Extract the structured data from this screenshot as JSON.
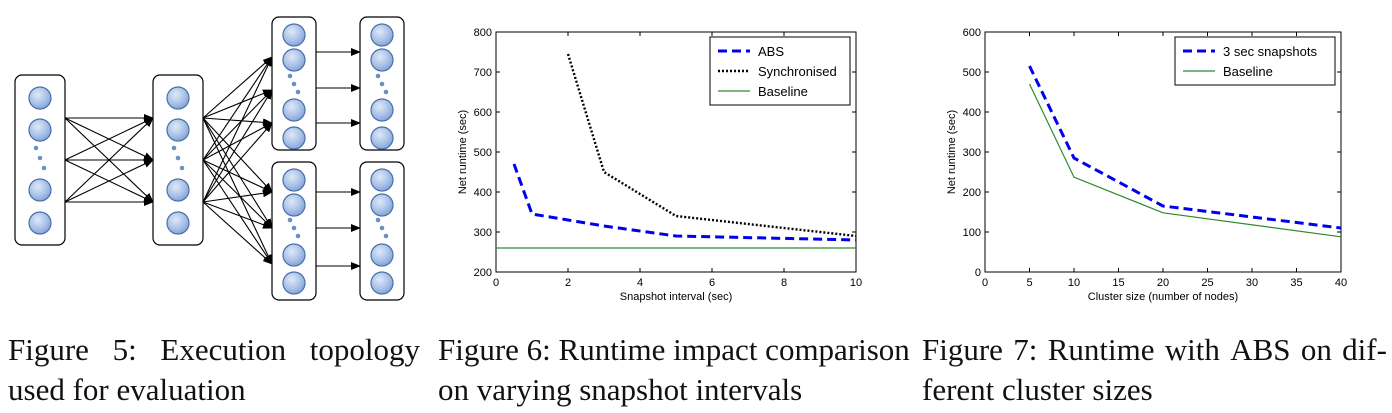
{
  "figure5": {
    "caption_line1_words": [
      "Figure",
      "5:",
      "Execution",
      "topology"
    ],
    "caption_line2": "used for evaluation"
  },
  "figure6": {
    "caption_line1": "Figure 6: Runtime impact comparison",
    "caption_line2": "on varying snapshot intervals"
  },
  "figure7": {
    "caption_line1_words": [
      "Figure",
      "7:",
      "Runtime",
      "with",
      "ABS",
      "on",
      "dif-"
    ],
    "caption_line2": "ferent cluster sizes"
  },
  "chart_data": [
    {
      "type": "line",
      "xlabel": "Snapshot interval (sec)",
      "ylabel": "Net runtime (sec)",
      "xlim": [
        0,
        10
      ],
      "ylim": [
        200,
        800
      ],
      "xticks": [
        0,
        2,
        4,
        6,
        8,
        10
      ],
      "yticks": [
        200,
        300,
        400,
        500,
        600,
        700,
        800
      ],
      "grid": false,
      "legend_position": "top-right",
      "series": [
        {
          "name": "ABS",
          "style": "dashed",
          "color": "#0000ee",
          "x": [
            0.5,
            1,
            2,
            3,
            5,
            10
          ],
          "y": [
            470,
            345,
            330,
            315,
            290,
            280
          ]
        },
        {
          "name": "Synchronised",
          "style": "dotted",
          "color": "#000000",
          "x": [
            2,
            3,
            5,
            10
          ],
          "y": [
            745,
            450,
            340,
            290
          ]
        },
        {
          "name": "Baseline",
          "style": "solid",
          "color": "#2e8b2e",
          "x": [
            0,
            10
          ],
          "y": [
            260,
            260
          ]
        }
      ]
    },
    {
      "type": "line",
      "xlabel": "Cluster size (number of nodes)",
      "ylabel": "Net runtime (sec)",
      "xlim": [
        0,
        40
      ],
      "ylim": [
        0,
        600
      ],
      "xticks": [
        0,
        5,
        10,
        15,
        20,
        25,
        30,
        35,
        40
      ],
      "yticks": [
        0,
        100,
        200,
        300,
        400,
        500,
        600
      ],
      "grid": false,
      "legend_position": "top-right",
      "series": [
        {
          "name": "3 sec snapshots",
          "style": "dashed",
          "color": "#0000ee",
          "x": [
            5,
            10,
            20,
            40
          ],
          "y": [
            515,
            285,
            165,
            110
          ]
        },
        {
          "name": "Baseline",
          "style": "solid",
          "color": "#2e8b2e",
          "x": [
            5,
            10,
            20,
            40
          ],
          "y": [
            470,
            237,
            148,
            88
          ]
        }
      ]
    }
  ]
}
